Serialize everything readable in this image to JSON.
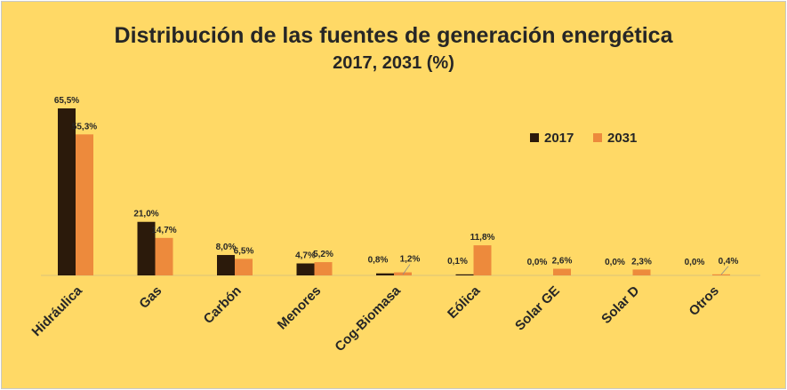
{
  "chart_data": {
    "type": "bar",
    "title": "Distribución de las fuentes de generación energética",
    "subtitle": "2017, 2031 (%)",
    "categories": [
      "Hidráulica",
      "Gas",
      "Carbón",
      "Menores",
      "Cog-Biomasa",
      "Eólica",
      "Solar GE",
      "Solar D",
      "Otros"
    ],
    "series": [
      {
        "name": "2017",
        "color": "#2B1A0B",
        "values": [
          65.5,
          21.0,
          8.0,
          4.7,
          0.8,
          0.1,
          0.0,
          0.0,
          0.0
        ],
        "labels": [
          "65,5%",
          "21,0%",
          "8,0%",
          "4,7%",
          "0,8%",
          "0,1%",
          "0,0%",
          "0,0%",
          "0,0%"
        ]
      },
      {
        "name": "2031",
        "color": "#ED8A3C",
        "values": [
          55.3,
          14.7,
          6.5,
          5.2,
          1.2,
          11.8,
          2.6,
          2.3,
          0.4
        ],
        "labels": [
          "55,3%",
          "14,7%",
          "6,5%",
          "5,2%",
          "1,2%",
          "11,8%",
          "2,6%",
          "2,3%",
          "0,4%"
        ]
      }
    ],
    "xlabel": "",
    "ylabel": "",
    "ylim": [
      0,
      70
    ],
    "grid": false,
    "legend": "top-right"
  }
}
